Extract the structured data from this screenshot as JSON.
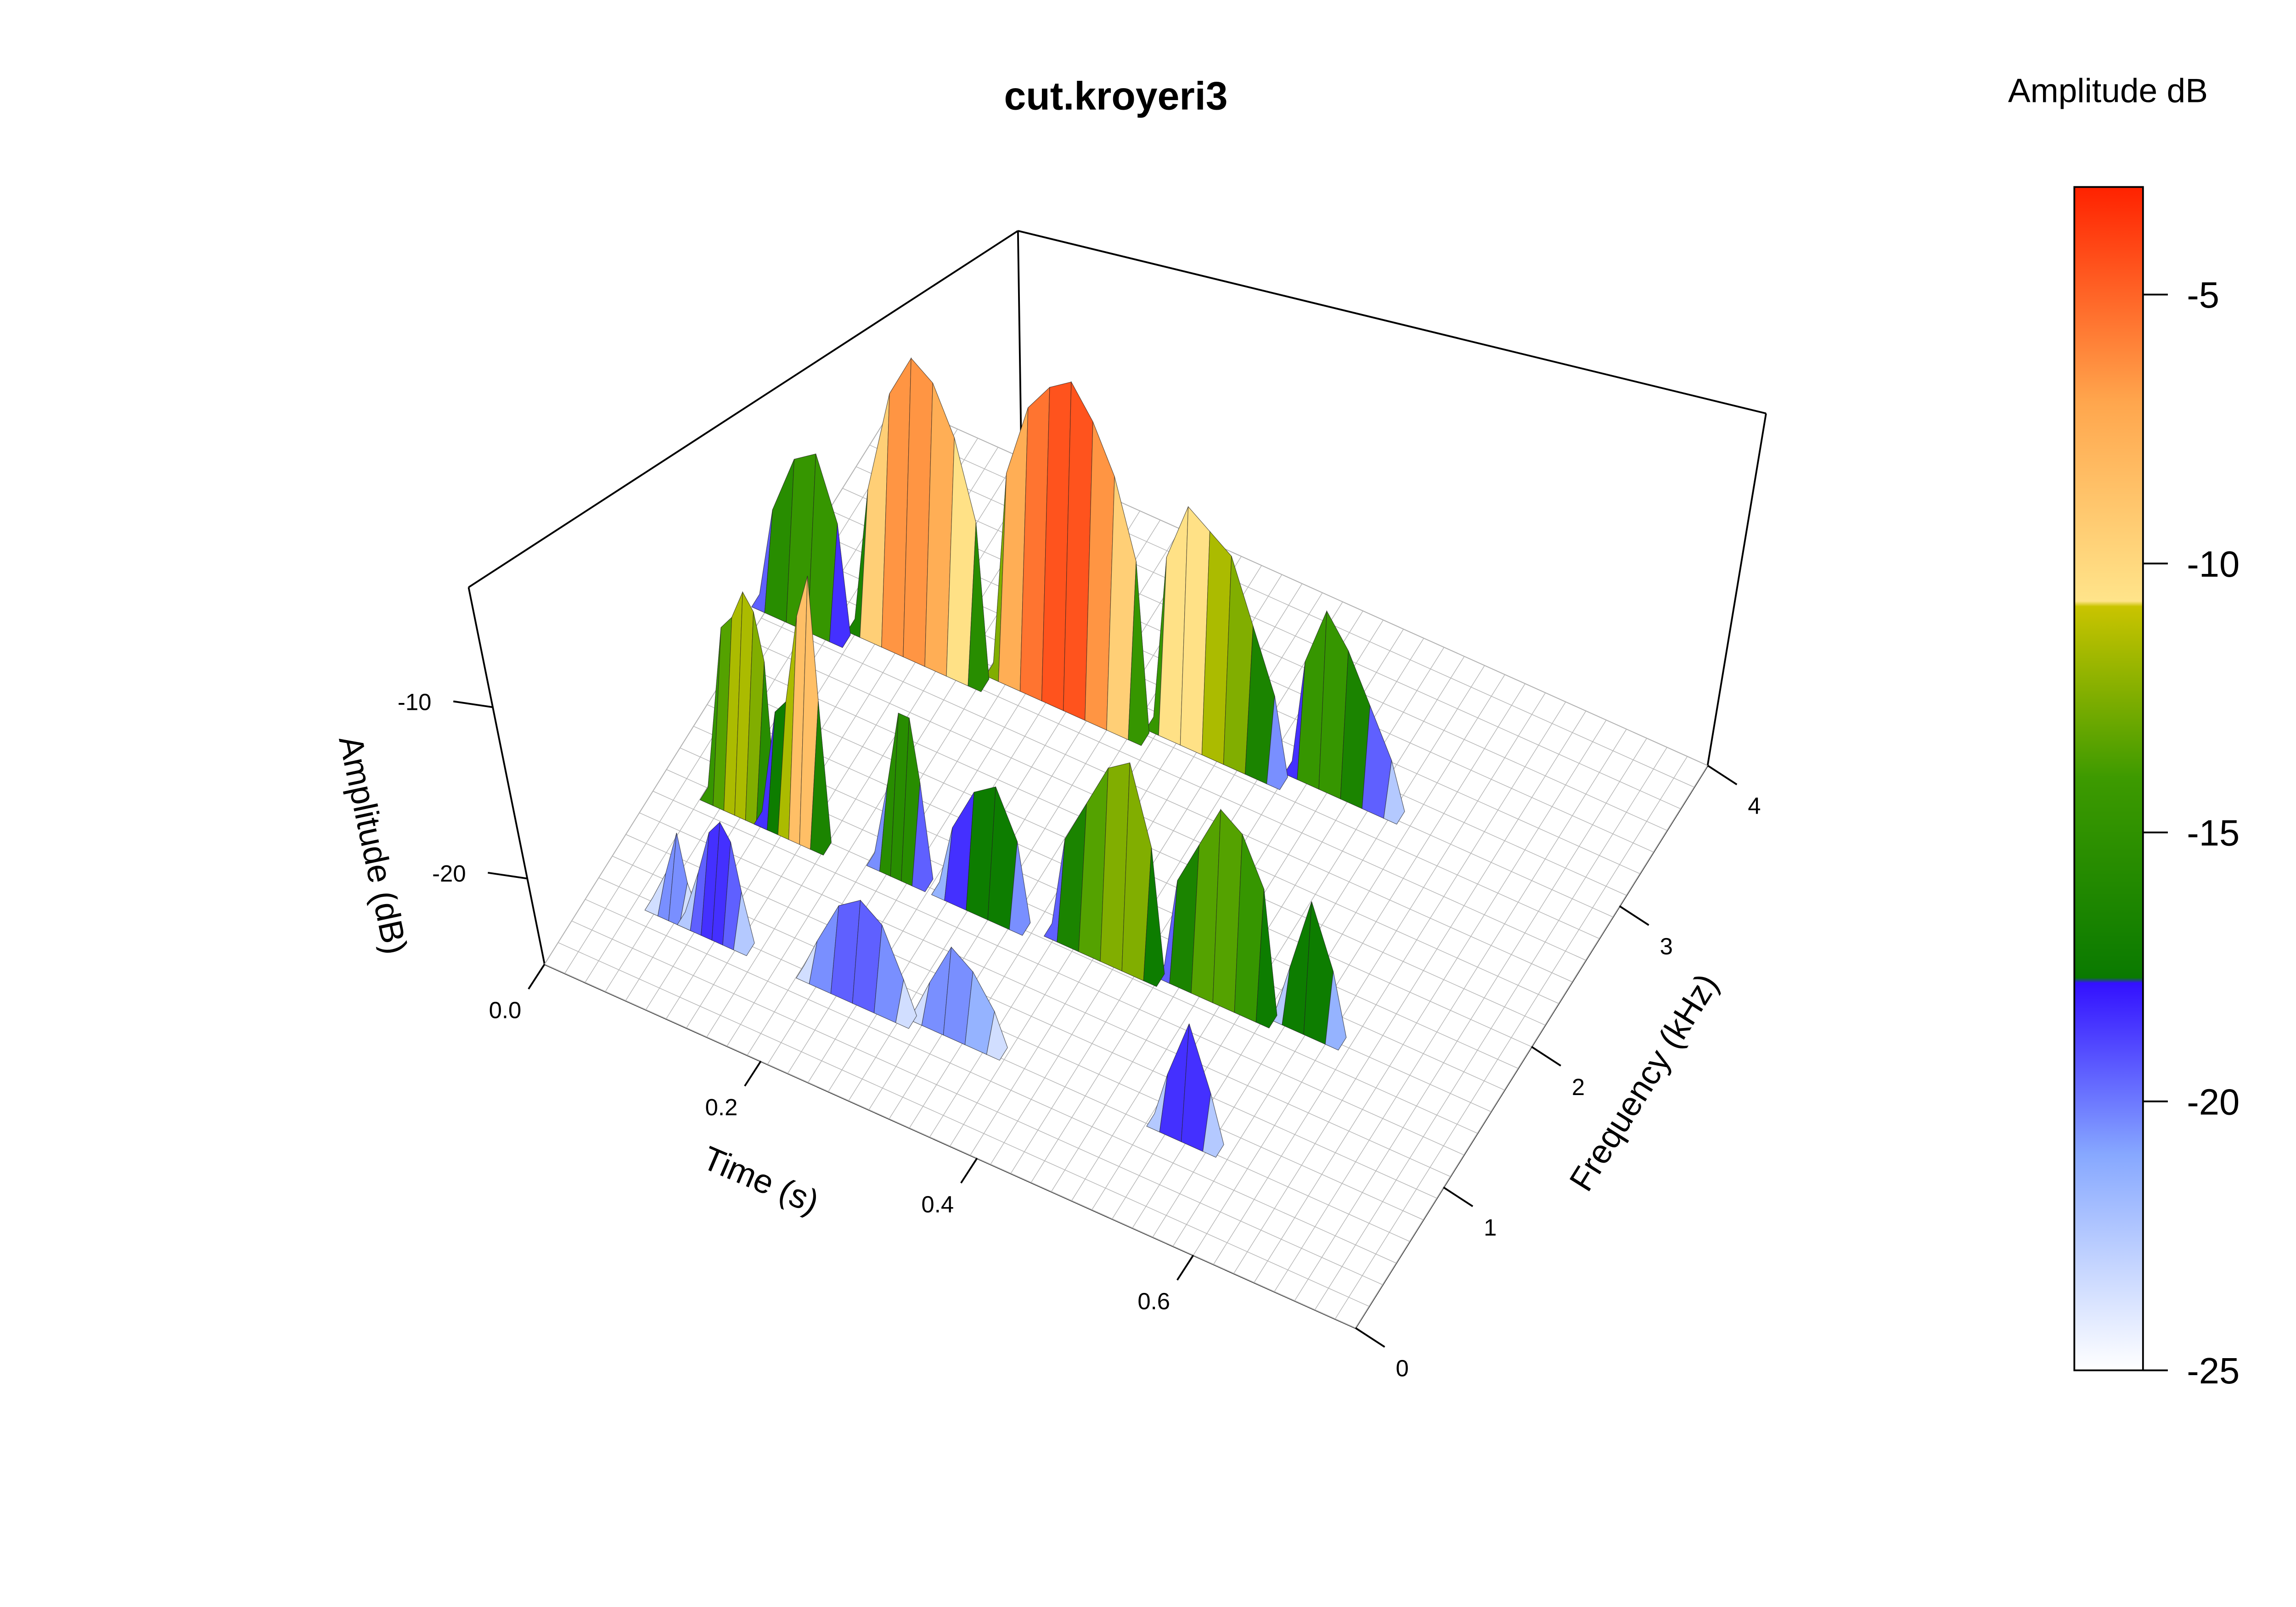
{
  "chart_data": {
    "type": "surface",
    "title": "cut.kroyeri3",
    "x_axis": {
      "label": "Time (s)",
      "ticks": [
        "0.0",
        "0.2",
        "0.4",
        "0.6"
      ],
      "range": [
        0,
        0.75
      ]
    },
    "y_axis": {
      "label": "Frequency (kHz)",
      "ticks": [
        "0",
        "1",
        "2",
        "3",
        "4"
      ],
      "range": [
        0,
        4
      ]
    },
    "z_axis": {
      "label": "Amplitude (dB)",
      "ticks": [
        "-10",
        "-20"
      ],
      "range": [
        -25,
        -3
      ]
    },
    "colorbar": {
      "title": "Amplitude dB",
      "ticks": [
        "-5",
        "-10",
        "-15",
        "-20",
        "-25"
      ],
      "range": [
        -25,
        -3
      ],
      "color_stops": [
        {
          "db": -25,
          "color": "#ffffff"
        },
        {
          "db": -21,
          "color": "#87a8ff"
        },
        {
          "db": -17.8,
          "color": "#3311ff"
        },
        {
          "db": -17.7,
          "color": "#0a7a00"
        },
        {
          "db": -14,
          "color": "#3d9a00"
        },
        {
          "db": -10.8,
          "color": "#c9c400"
        },
        {
          "db": -10.7,
          "color": "#ffe48a"
        },
        {
          "db": -7,
          "color": "#ffa64d"
        },
        {
          "db": -3,
          "color": "#ff2200"
        }
      ]
    },
    "series": [
      {
        "time": [
          0.06,
          0.07,
          0.08
        ],
        "frequency": [
          0.55,
          0.55,
          0.55
        ],
        "amplitude_db": [
          -23,
          -20,
          -23
        ]
      },
      {
        "time": [
          0.09,
          0.1,
          0.11,
          0.12,
          0.13
        ],
        "frequency": [
          0.55,
          0.55,
          0.55,
          0.55,
          0.55
        ],
        "amplitude_db": [
          -22,
          -19,
          -18,
          -19,
          -22
        ]
      },
      {
        "time": [
          0.2,
          0.22,
          0.24,
          0.26,
          0.28
        ],
        "frequency": [
          0.55,
          0.55,
          0.55,
          0.55,
          0.55
        ],
        "amplitude_db": [
          -23,
          -20,
          -19,
          -20,
          -23
        ]
      },
      {
        "time": [
          0.3,
          0.32,
          0.34,
          0.36
        ],
        "frequency": [
          0.6,
          0.6,
          0.6,
          0.6
        ],
        "amplitude_db": [
          -23,
          -20,
          -21,
          -23
        ]
      },
      {
        "time": [
          0.52,
          0.54,
          0.56
        ],
        "frequency": [
          0.6,
          0.6,
          0.6
        ],
        "amplitude_db": [
          -22,
          -18,
          -22
        ]
      },
      {
        "time": [
          0.05,
          0.06,
          0.07,
          0.08,
          0.09
        ],
        "frequency": [
          1.3,
          1.3,
          1.3,
          1.3,
          1.3
        ],
        "amplitude_db": [
          -14,
          -13,
          -11,
          -12,
          -15
        ]
      },
      {
        "time": [
          0.1,
          0.11,
          0.12,
          0.13,
          0.14
        ],
        "frequency": [
          1.3,
          1.3,
          1.3,
          1.3,
          1.3
        ],
        "amplitude_db": [
          -18,
          -17,
          -11,
          -8,
          -16
        ]
      },
      {
        "time": [
          0.2,
          0.21,
          0.22,
          0.23
        ],
        "frequency": [
          1.35,
          1.35,
          1.35,
          1.35
        ],
        "amplitude_db": [
          -20,
          -15,
          -15,
          -19
        ]
      },
      {
        "time": [
          0.26,
          0.28,
          0.3,
          0.32
        ],
        "frequency": [
          1.35,
          1.35,
          1.35,
          1.35
        ],
        "amplitude_db": [
          -21,
          -18,
          -17,
          -20
        ]
      },
      {
        "time": [
          0.36,
          0.38,
          0.4,
          0.42,
          0.44
        ],
        "frequency": [
          1.4,
          1.4,
          1.4,
          1.4,
          1.4
        ],
        "amplitude_db": [
          -19,
          -16,
          -13,
          -12,
          -17
        ]
      },
      {
        "time": [
          0.46,
          0.48,
          0.5,
          0.52,
          0.54
        ],
        "frequency": [
          1.45,
          1.45,
          1.45,
          1.45,
          1.45
        ],
        "amplitude_db": [
          -19,
          -16,
          -13,
          -14,
          -17
        ]
      },
      {
        "time": [
          0.56,
          0.58,
          0.6
        ],
        "frequency": [
          1.5,
          1.5,
          1.5
        ],
        "amplitude_db": [
          -22,
          -17,
          -21
        ]
      },
      {
        "time": [
          0.0,
          0.02,
          0.04,
          0.06
        ],
        "frequency": [
          2.5,
          2.5,
          2.5,
          2.5
        ],
        "amplitude_db": [
          -19,
          -15,
          -14,
          -18
        ]
      },
      {
        "time": [
          0.08,
          0.1,
          0.12,
          0.14,
          0.16,
          0.18
        ],
        "frequency": [
          2.6,
          2.6,
          2.6,
          2.6,
          2.6,
          2.6
        ],
        "amplitude_db": [
          -16,
          -9,
          -6,
          -7,
          -10,
          -15
        ]
      },
      {
        "time": [
          0.2,
          0.22,
          0.24,
          0.26,
          0.28,
          0.3,
          0.32
        ],
        "frequency": [
          2.7,
          2.7,
          2.7,
          2.7,
          2.7,
          2.7,
          2.7
        ],
        "amplitude_db": [
          -12,
          -7,
          -5,
          -4,
          -6,
          -9,
          -14
        ]
      },
      {
        "time": [
          0.34,
          0.36,
          0.38,
          0.4,
          0.42,
          0.44
        ],
        "frequency": [
          2.8,
          2.8,
          2.8,
          2.8,
          2.8,
          2.8
        ],
        "amplitude_db": [
          -14,
          -10,
          -11,
          -12,
          -16,
          -20
        ]
      },
      {
        "time": [
          0.46,
          0.48,
          0.5,
          0.52,
          0.54
        ],
        "frequency": [
          2.9,
          2.9,
          2.9,
          2.9,
          2.9
        ],
        "amplitude_db": [
          -18,
          -14,
          -16,
          -19,
          -22
        ]
      }
    ]
  }
}
